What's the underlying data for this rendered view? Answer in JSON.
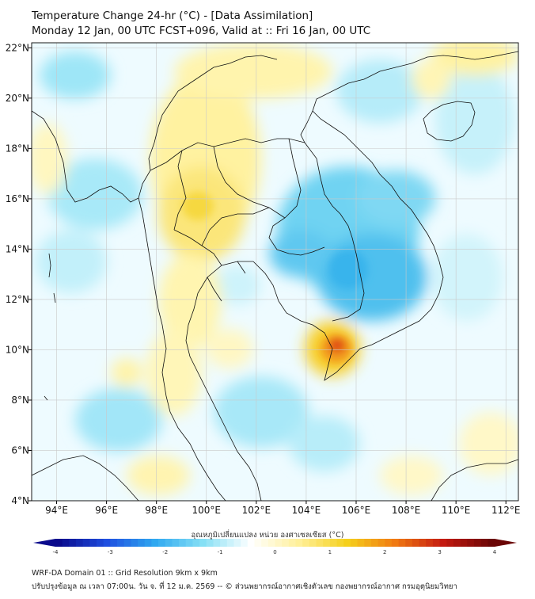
{
  "title_line1": "Temperature Change 24-hr (°C) - [Data Assimilation]",
  "title_line2": "Monday 12 Jan, 00 UTC FCST+096, Valid at :: Fri 16 Jan, 00 UTC",
  "map": {
    "lon_range": [
      93,
      112.5
    ],
    "lat_range": [
      4,
      22.2
    ],
    "lon_ticks": [
      "94°E",
      "96°E",
      "98°E",
      "100°E",
      "102°E",
      "104°E",
      "106°E",
      "108°E",
      "110°E",
      "112°E"
    ],
    "lat_ticks": [
      "4°N",
      "6°N",
      "8°N",
      "10°N",
      "12°N",
      "14°N",
      "16°N",
      "18°N",
      "20°N",
      "22°N"
    ]
  },
  "colorbar": {
    "label": "อุณหภูมิเปลี่ยนแปลง หน่วย องศาเซลเซียส (°C)",
    "range": [
      -4,
      4
    ],
    "ticks": [
      "-4",
      "-3",
      "-2",
      "-1",
      "0",
      "1",
      "2",
      "3",
      "4"
    ],
    "colors": [
      "#0a0a8c",
      "#1f4fe0",
      "#2fa8f0",
      "#86e0f5",
      "#ffffff",
      "#fff09a",
      "#f5d01c",
      "#f07a12",
      "#c41a10",
      "#6a0505"
    ]
  },
  "footer_line1": "WRF-DA Domain 01 :: Grid Resolution 9km x 9km",
  "footer_line2": "ปรับปรุงข้อมูล ณ เวลา 07:00น. วัน จ. ที่ 12 ม.ค. 2569 -- © ส่วนพยากรณ์อากาศเชิงตัวเลข กองพยากรณ์อากาศ กรมอุตุนิยมวิทยา"
}
